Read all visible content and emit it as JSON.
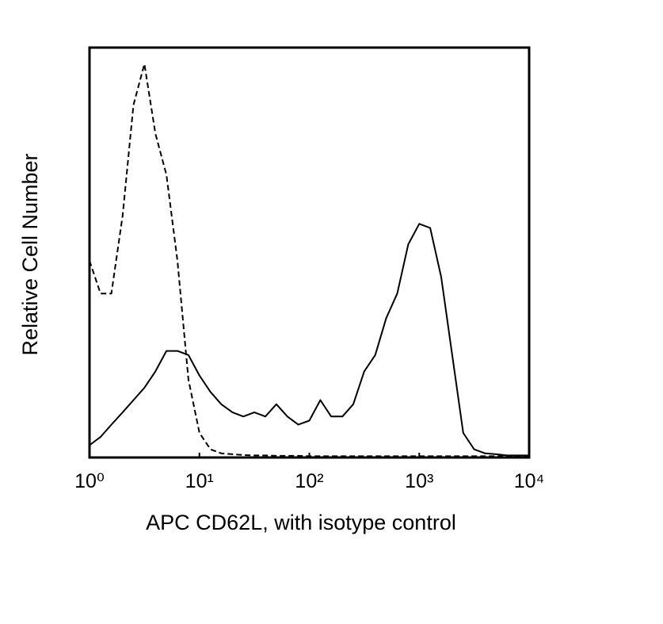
{
  "chart_data": {
    "type": "line",
    "x_label": "APC CD62L, with isotype control",
    "y_label": "Relative Cell Number",
    "x_log": true,
    "xlim": [
      1,
      10000
    ],
    "xticks": [
      {
        "value": 1,
        "label": "10⁰"
      },
      {
        "value": 10,
        "label": "10¹"
      },
      {
        "value": 100,
        "label": "10²"
      },
      {
        "value": 1000,
        "label": "10³"
      },
      {
        "value": 10000,
        "label": "10⁴"
      }
    ],
    "ylim": [
      0,
      100
    ],
    "x": [
      1,
      1.26,
      1.58,
      2,
      2.51,
      3.16,
      3.98,
      5.01,
      6.31,
      7.94,
      10,
      12.6,
      15.8,
      20,
      25.1,
      31.6,
      39.8,
      50.1,
      63.1,
      79.4,
      100,
      126,
      158,
      200,
      251,
      316,
      398,
      501,
      631,
      794,
      1000,
      1259,
      1585,
      1995,
      2512,
      3162,
      3981,
      5012,
      6310,
      7943,
      10000
    ],
    "series": [
      {
        "color": "#000000",
        "dashed": true,
        "values": [
          48,
          40,
          40,
          59,
          86,
          96,
          79,
          69,
          48,
          19,
          6,
          2,
          1,
          0.8,
          0.6,
          0.5,
          0.5,
          0.4,
          0.4,
          0.4,
          0.3,
          0.3,
          0.3,
          0.3,
          0.3,
          0.3,
          0.3,
          0.3,
          0.3,
          0.3,
          0.3,
          0.3,
          0.3,
          0.3,
          0.3,
          0.3,
          0.3,
          0.3,
          0.3,
          0.3,
          0.3
        ]
      },
      {
        "color": "#000000",
        "dashed": false,
        "values": [
          3,
          5,
          8,
          11,
          14,
          17,
          21,
          26,
          26,
          25,
          20,
          16,
          13,
          11,
          10,
          11,
          10,
          13,
          10,
          8,
          9,
          14,
          10,
          10,
          13,
          21,
          25,
          34,
          40,
          52,
          57,
          56,
          44,
          25,
          6,
          2,
          1,
          0.8,
          0.5,
          0.5,
          0.5
        ]
      }
    ]
  }
}
